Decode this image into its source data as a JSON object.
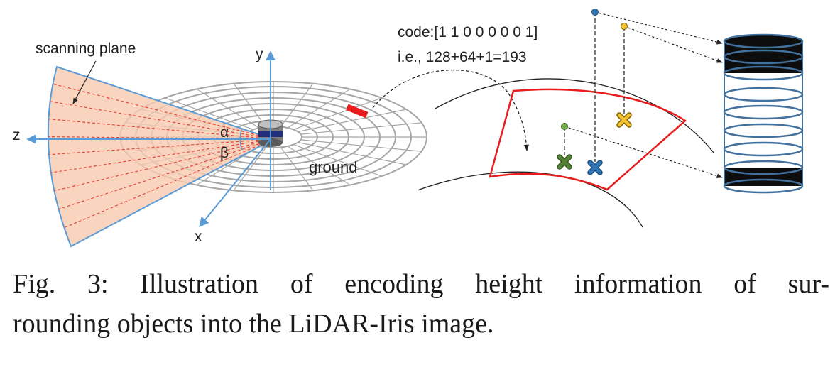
{
  "labels": {
    "scanning_plane": "scanning plane",
    "axis_x": "x",
    "axis_y": "y",
    "axis_z": "z",
    "alpha": "α",
    "beta": "β",
    "ground": "ground",
    "code": "code:[1 1 0 0 0 0 0 1]",
    "ie": "i.e., 128+64+1=193"
  },
  "caption": {
    "line1": "Fig. 3: Illustration of encoding height information of sur-",
    "line2": "rounding objects into the LiDAR-Iris image."
  },
  "colors": {
    "axis": "#5b9bd5",
    "fan_fill": "#f8cbb0",
    "fan_edge": "#5b9bd5",
    "beam": "#e8473a",
    "grid": "#a6a6a6",
    "sector": "#e81c1c",
    "ring": "#41719c",
    "black_ring": "#0d0d0d",
    "marker_green": "#548235",
    "marker_blue": "#2e75b6",
    "marker_yellow": "#f2c230"
  }
}
